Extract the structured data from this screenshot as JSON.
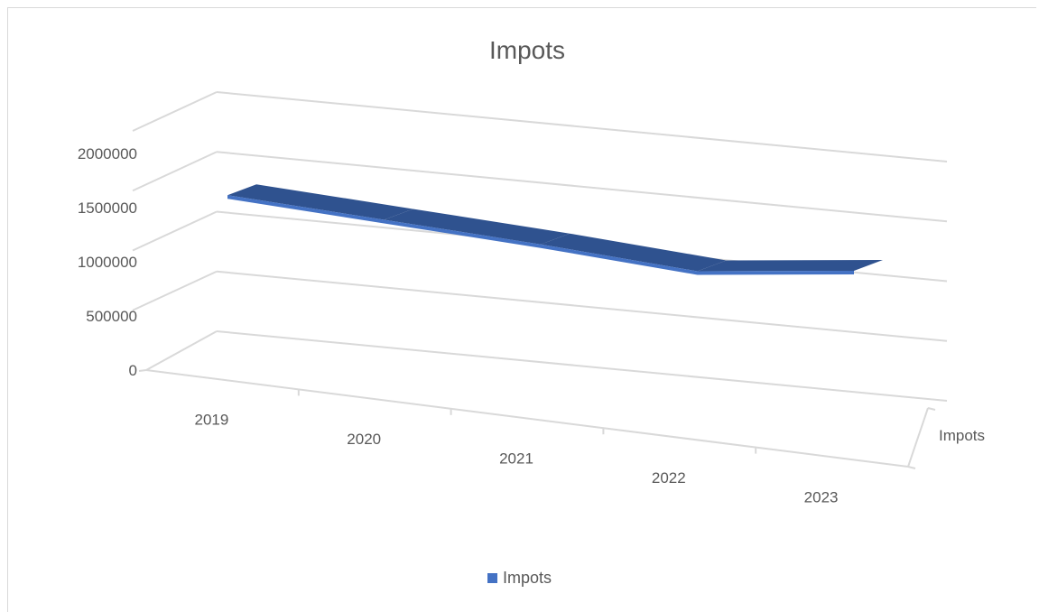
{
  "chart_data": {
    "type": "line",
    "variant": "3d-line",
    "title": "Impots",
    "categories": [
      "2019",
      "2020",
      "2021",
      "2022",
      "2023"
    ],
    "series": [
      {
        "name": "Impots",
        "values": [
          1500000,
          1500000,
          1500000,
          1480000,
          1700000
        ]
      }
    ],
    "ylim": [
      0,
      2000000
    ],
    "yticks": [
      "0",
      "500000",
      "1000000",
      "1500000",
      "2000000"
    ],
    "depth_axis_label": "Impots",
    "grid": true,
    "legend_position": "bottom",
    "colors": {
      "series_top": "#2f528f",
      "series_front": "#4472c4",
      "gridline": "#d9d9d9",
      "text": "#595959"
    }
  }
}
